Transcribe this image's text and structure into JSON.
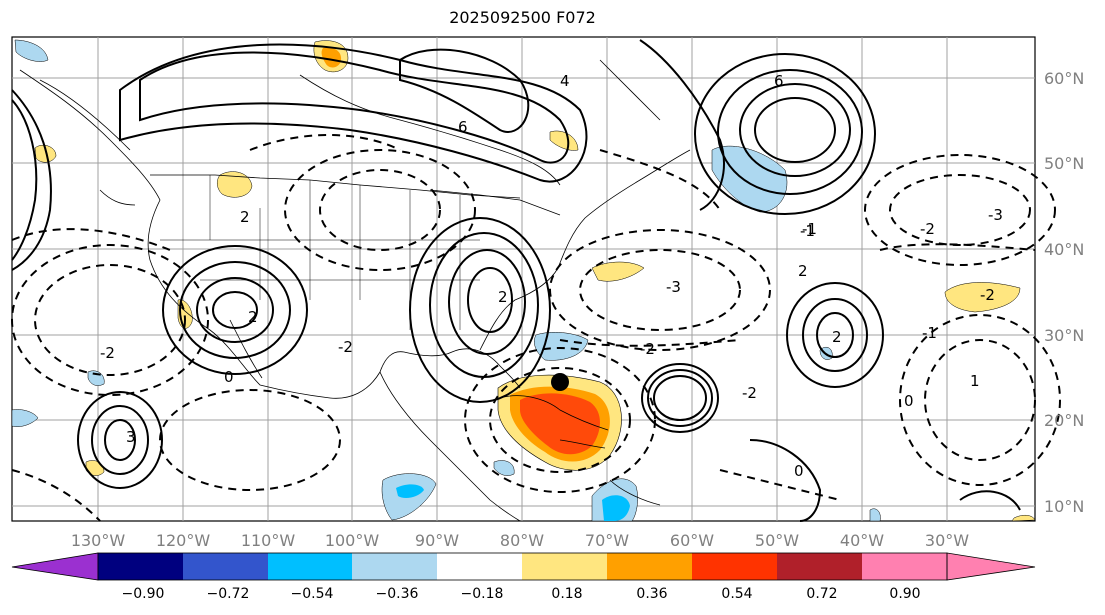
{
  "title": "2025092500 F072",
  "map": {
    "longitude_labels": [
      "130°W",
      "120°W",
      "110°W",
      "100°W",
      "90°W",
      "80°W",
      "70°W",
      "60°W",
      "50°W",
      "40°W",
      "30°W"
    ],
    "latitude_labels": [
      "60°N",
      "50°N",
      "40°N",
      "30°N",
      "20°N",
      "10°N"
    ],
    "contour_labels": [
      "6",
      "6",
      "2",
      "3",
      "2",
      "0",
      "2",
      "2",
      "4",
      "0",
      "-3",
      "-2",
      "-2",
      "-3",
      "-2",
      "-1",
      "-1",
      "-2",
      "1",
      "0",
      "-2",
      "-2",
      "2",
      "-1"
    ],
    "marker": "storm-center-dot"
  },
  "colorbar": {
    "ticks": [
      "−0.90",
      "−0.72",
      "−0.54",
      "−0.36",
      "−0.18",
      "0.18",
      "0.36",
      "0.54",
      "0.72",
      "0.90"
    ],
    "colors": [
      "#9b30d0",
      "#00007f",
      "#3355cc",
      "#00bfff",
      "#add8f0",
      "#ffffff",
      "#ffe680",
      "#ffa000",
      "#ff3300",
      "#b0202a",
      "#ff80b0"
    ]
  }
}
